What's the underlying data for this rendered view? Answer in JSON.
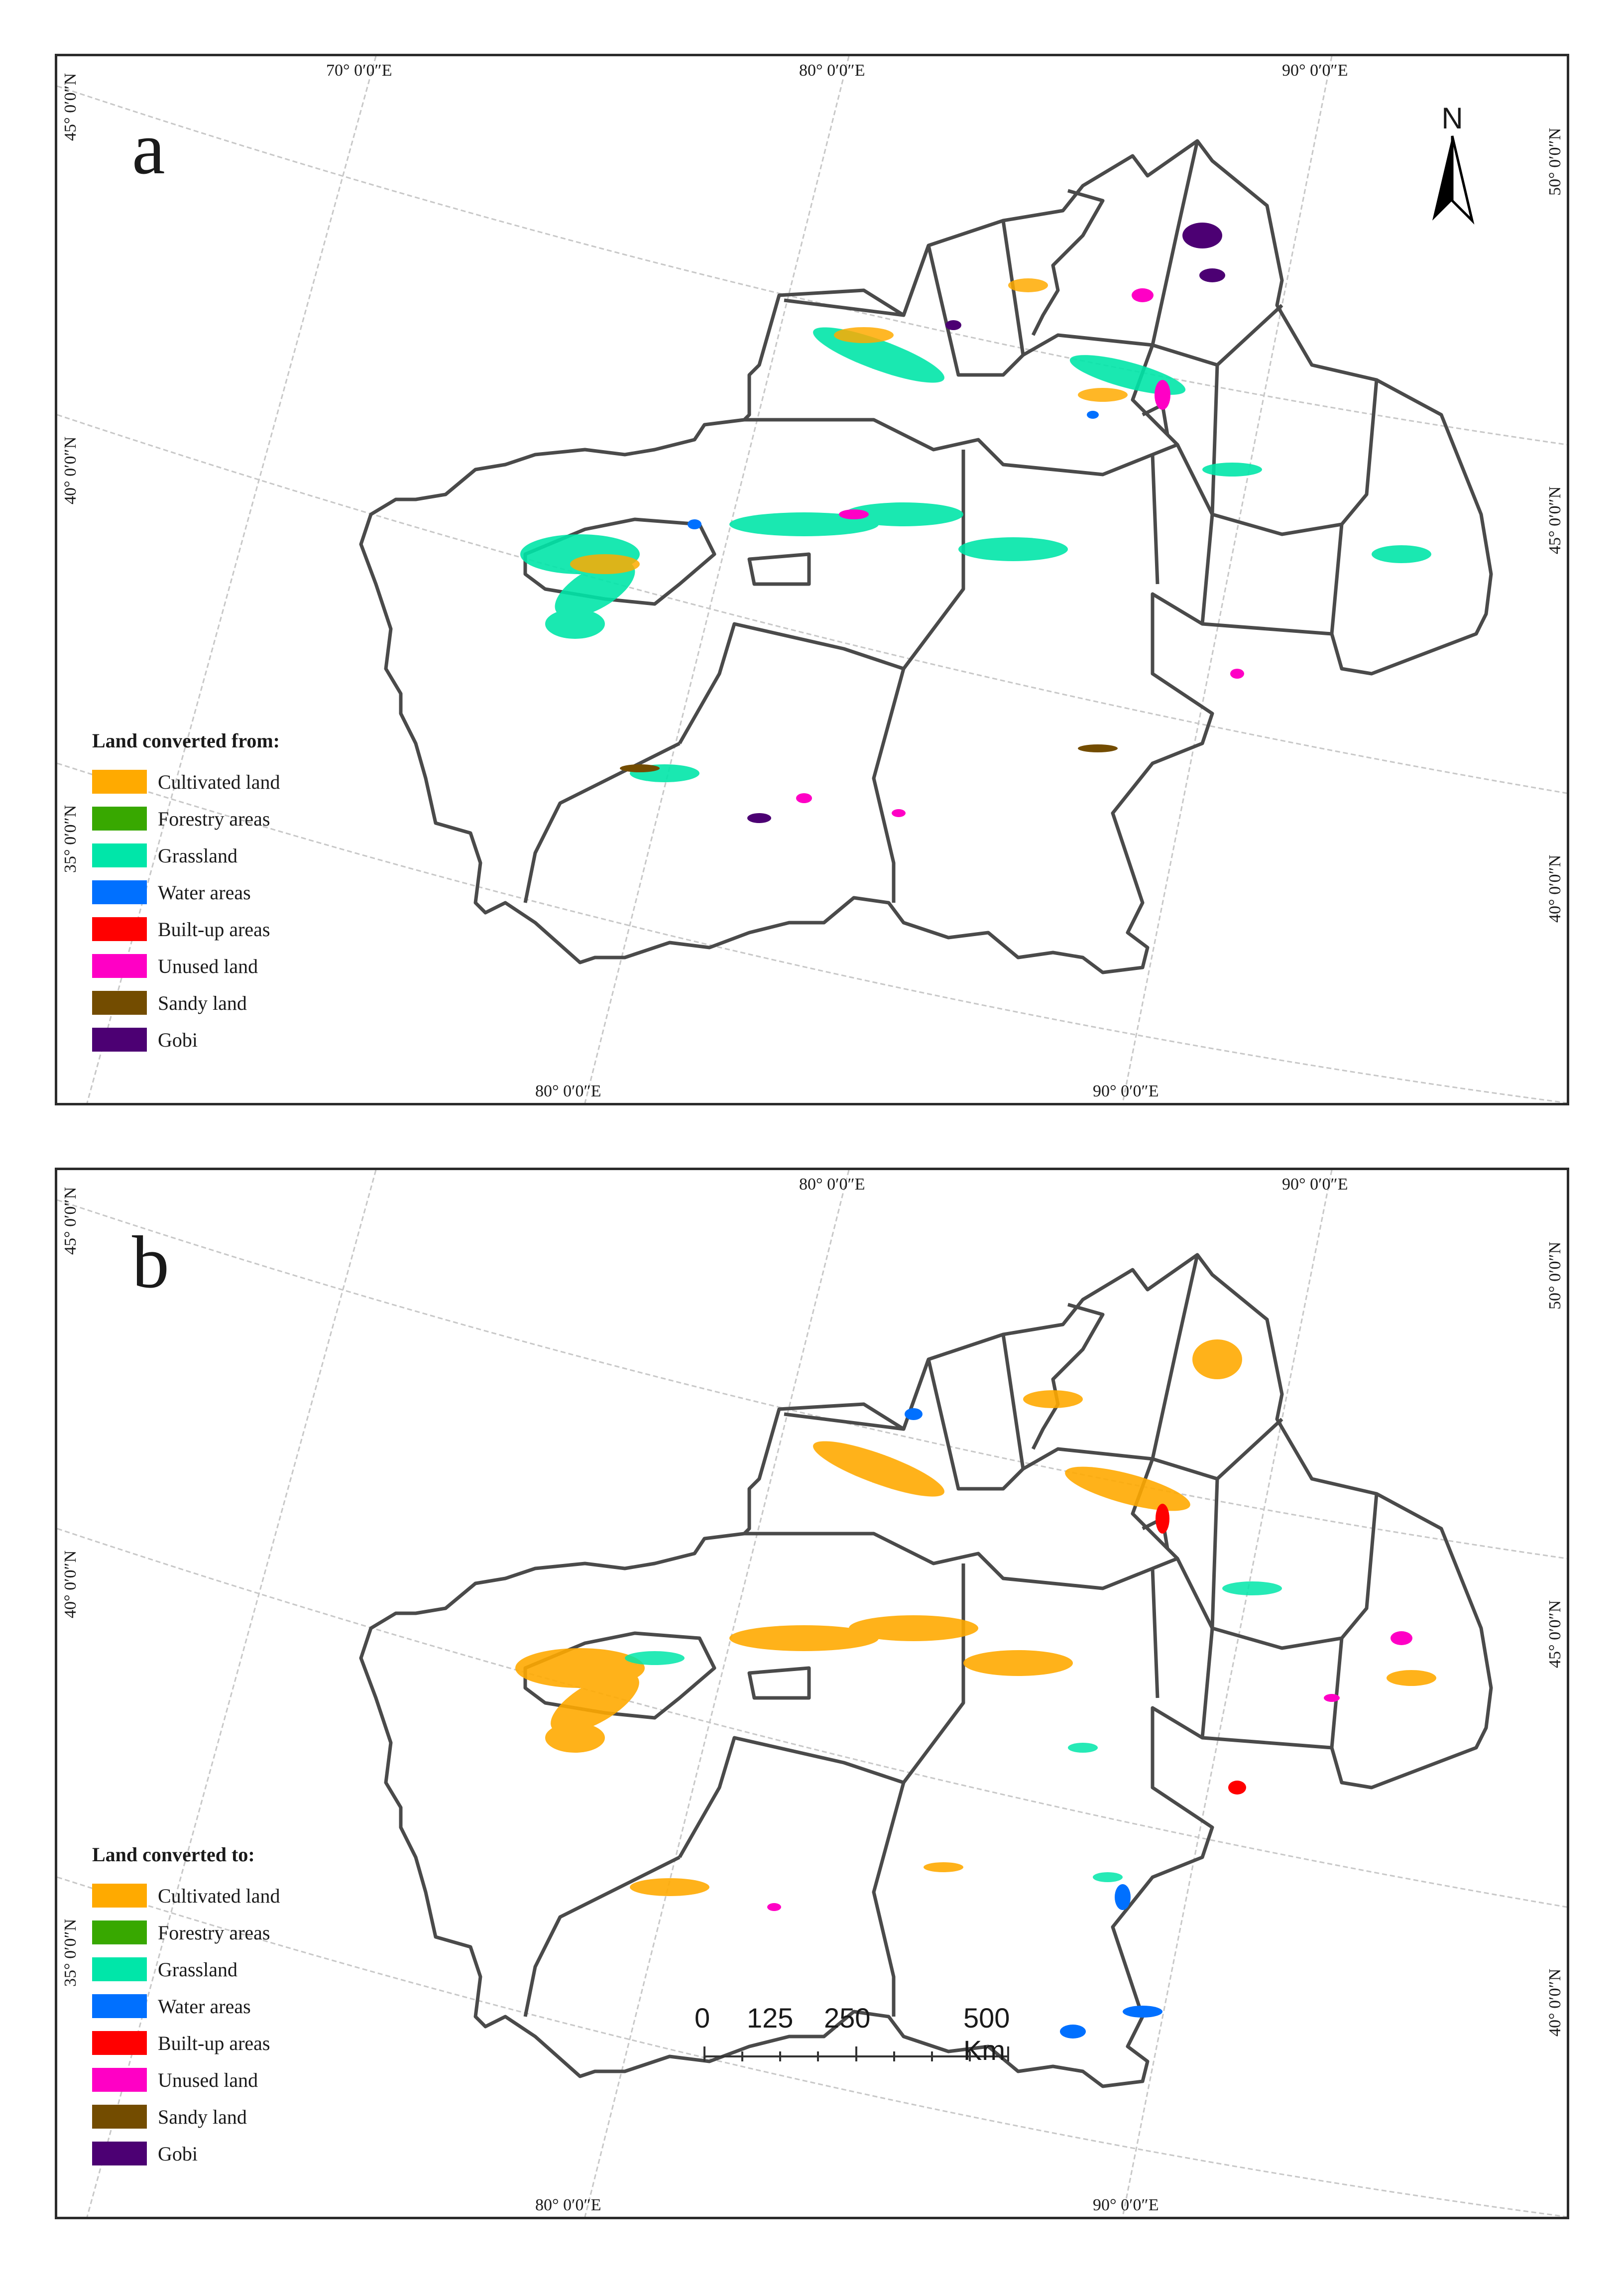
{
  "panel_a": {
    "letter": "a",
    "legend_title": "Land converted from:",
    "top_longitudes": [
      "70° 0′0″E",
      "80° 0′0″E",
      "90° 0′0″E"
    ],
    "bottom_longitudes": [
      "80° 0′0″E",
      "90° 0′0″E"
    ],
    "left_latitudes": [
      "45° 0′0″N",
      "40° 0′0″N",
      "35° 0′0″N"
    ],
    "right_latitudes": [
      "50° 0′0″N",
      "45° 0′0″N",
      "40° 0′0″N"
    ],
    "north_label": "N"
  },
  "panel_b": {
    "letter": "b",
    "legend_title": "Land converted to:",
    "top_longitudes": [
      "80° 0′0″E",
      "90° 0′0″E"
    ],
    "bottom_longitudes": [
      "80° 0′0″E",
      "90° 0′0″E"
    ],
    "left_latitudes": [
      "45° 0′0″N",
      "40° 0′0″N",
      "35° 0′0″N"
    ],
    "right_latitudes": [
      "50° 0′0″N",
      "45° 0′0″N",
      "40° 0′0″N"
    ],
    "scale_labels": [
      "0",
      "125",
      "250",
      "500 Km"
    ]
  },
  "legend_items": [
    {
      "label": "Cultivated land",
      "color": "#ffaa00"
    },
    {
      "label": "Forestry areas",
      "color": "#38a800"
    },
    {
      "label": "Grassland",
      "color": "#00e6a9"
    },
    {
      "label": "Water areas",
      "color": "#0070ff"
    },
    {
      "label": "Built-up areas",
      "color": "#ff0000"
    },
    {
      "label": "Unused land",
      "color": "#ff00c5"
    },
    {
      "label": "Sandy land",
      "color": "#734c00"
    },
    {
      "label": "Gobi",
      "color": "#4c0073"
    }
  ]
}
